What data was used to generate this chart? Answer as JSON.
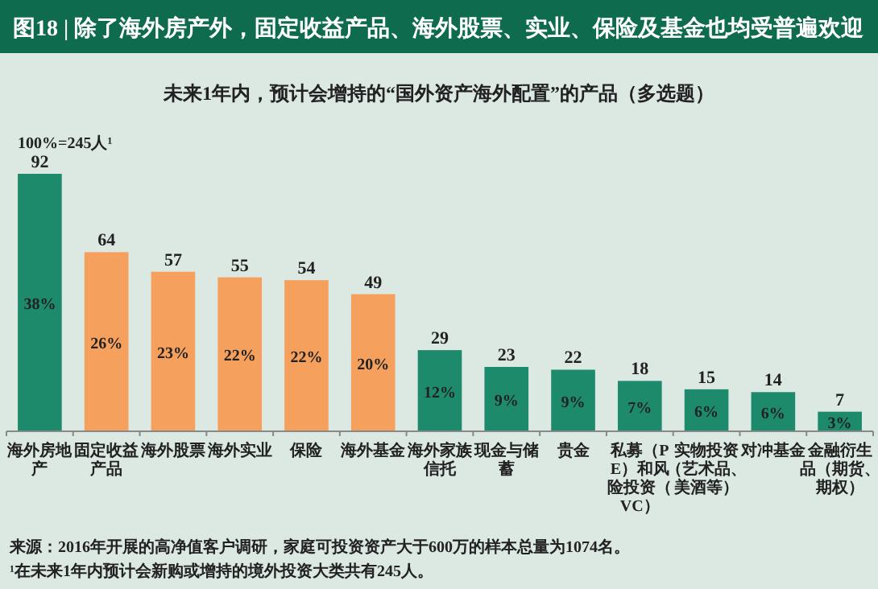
{
  "chart_data": {
    "type": "bar",
    "title": "图18 | 除了海外房产外，固定收益产品、海外股票、实业、保险及基金也均受普遍欢迎",
    "subtitle": "未来1年内，预计会增持的“国外资产海外配置”的产品（多选题）",
    "categories": [
      "海外房地产",
      "固定收益产品",
      "海外股票",
      "海外实业",
      "保险",
      "海外基金",
      "海外家族信托",
      "现金与储蓄",
      "贵金",
      "私募（PE）和风险投资（VC）",
      "实物投资（艺术品、美酒等）",
      "对冲基金",
      "金融衍生品（期货、期权）"
    ],
    "values": [
      92,
      64,
      57,
      55,
      54,
      49,
      29,
      23,
      22,
      18,
      15,
      14,
      7
    ],
    "colors": [
      "#1e8a6c",
      "#f5a05c",
      "#f5a05c",
      "#f5a05c",
      "#f5a05c",
      "#f5a05c",
      "#1e8a6c",
      "#1e8a6c",
      "#1e8a6c",
      "#1e8a6c",
      "#1e8a6c",
      "#1e8a6c",
      "#1e8a6c"
    ],
    "data_labels": true,
    "annotations": [
      "100%=245人¹",
      "38%",
      "26%",
      "23%",
      "22%",
      "22%",
      "20%",
      "12%",
      "9%",
      "9%",
      "7%",
      "6%",
      "6%",
      "3%",
      "来源：2016年开展的高净值客户调研，家庭可投资资产大于600万的样本总量为1074名。",
      "¹在未来1年内预计会新购或增持的境外投资大类共有245人。"
    ]
  }
}
